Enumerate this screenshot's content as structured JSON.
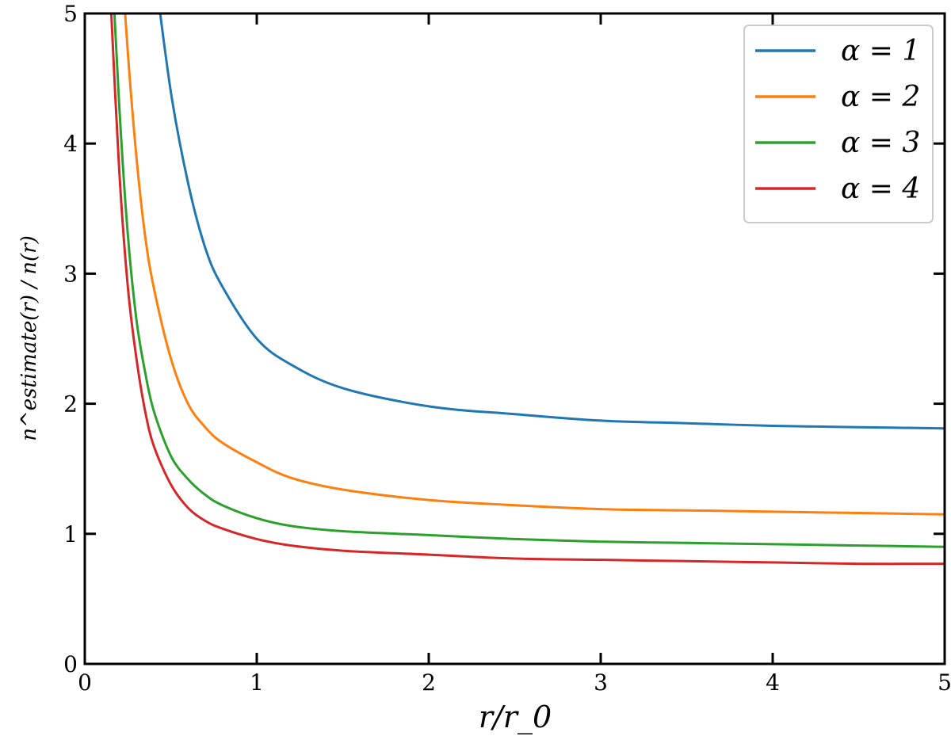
{
  "chart_data": {
    "type": "line",
    "title": "",
    "xlabel": "r/r_0",
    "ylabel": "n^estimate(r) / n(r)",
    "xlim": [
      0,
      5
    ],
    "ylim": [
      0,
      5
    ],
    "x_ticks": [
      "0",
      "1",
      "2",
      "3",
      "4",
      "5"
    ],
    "y_ticks": [
      "0",
      "1",
      "2",
      "3",
      "4",
      "5"
    ],
    "grid": false,
    "legend_position": "top-right",
    "x": [
      0.1,
      0.15,
      0.2,
      0.25,
      0.3,
      0.35,
      0.4,
      0.5,
      0.6,
      0.7,
      0.8,
      1.0,
      1.2,
      1.5,
      2.0,
      2.5,
      3.0,
      3.5,
      4.0,
      4.5,
      5.0
    ],
    "series": [
      {
        "name": "α = 1",
        "color": "#1f77b4",
        "values": [
          null,
          null,
          null,
          null,
          null,
          null,
          5.4,
          4.4,
          3.7,
          3.2,
          2.9,
          2.5,
          2.3,
          2.12,
          1.98,
          1.92,
          1.87,
          1.85,
          1.83,
          1.82,
          1.81
        ]
      },
      {
        "name": "α = 2",
        "color": "#ff7f0e",
        "values": [
          null,
          null,
          5.7,
          4.7,
          3.9,
          3.3,
          2.9,
          2.35,
          2.0,
          1.82,
          1.7,
          1.55,
          1.43,
          1.34,
          1.26,
          1.22,
          1.19,
          1.18,
          1.17,
          1.16,
          1.15
        ]
      },
      {
        "name": "α = 3",
        "color": "#2ca02c",
        "values": [
          null,
          5.6,
          4.3,
          3.3,
          2.65,
          2.25,
          1.95,
          1.6,
          1.42,
          1.3,
          1.22,
          1.12,
          1.06,
          1.02,
          0.99,
          0.96,
          0.94,
          0.93,
          0.92,
          0.91,
          0.9
        ]
      },
      {
        "name": "α = 4",
        "color": "#d62728",
        "values": [
          null,
          5.1,
          3.8,
          2.9,
          2.35,
          1.95,
          1.68,
          1.38,
          1.2,
          1.1,
          1.04,
          0.96,
          0.91,
          0.87,
          0.84,
          0.81,
          0.8,
          0.79,
          0.78,
          0.77,
          0.77
        ]
      }
    ]
  }
}
